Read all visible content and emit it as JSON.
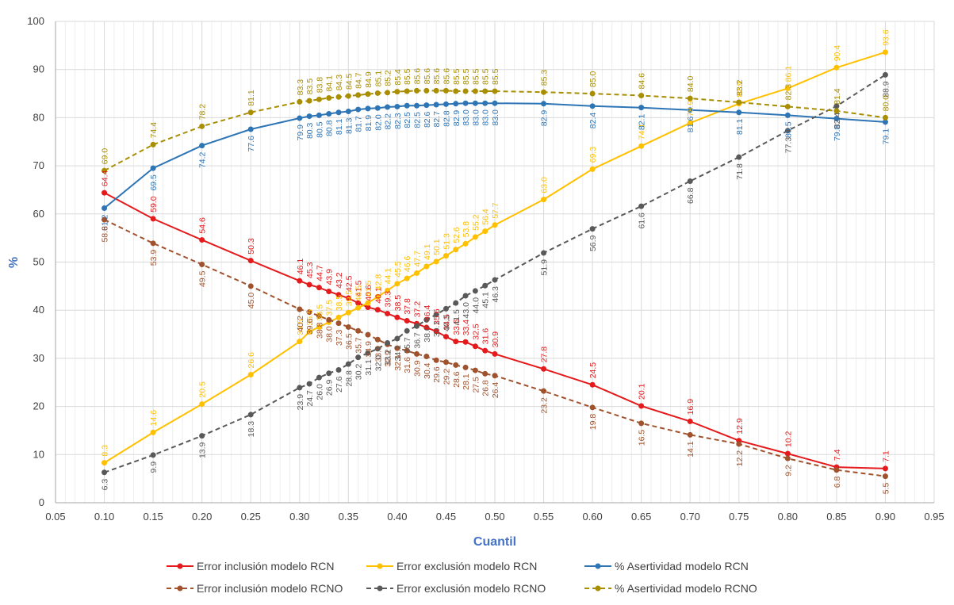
{
  "chart_data": {
    "type": "line",
    "title": "",
    "xlabel": "Cuantil",
    "ylabel": "%",
    "xlim": [
      0.05,
      0.95
    ],
    "ylim": [
      0,
      100
    ],
    "x_ticks": [
      "0.05",
      "0.10",
      "0.15",
      "0.20",
      "0.25",
      "0.30",
      "0.35",
      "0.40",
      "0.45",
      "0.50",
      "0.55",
      "0.60",
      "0.65",
      "0.70",
      "0.75",
      "0.80",
      "0.85",
      "0.90",
      "0.95"
    ],
    "y_ticks": [
      "0",
      "10",
      "20",
      "30",
      "40",
      "50",
      "60",
      "70",
      "80",
      "90",
      "100"
    ],
    "x": [
      0.1,
      0.15,
      0.2,
      0.25,
      0.3,
      0.31,
      0.32,
      0.33,
      0.34,
      0.35,
      0.36,
      0.37,
      0.38,
      0.39,
      0.4,
      0.41,
      0.42,
      0.43,
      0.44,
      0.45,
      0.46,
      0.47,
      0.48,
      0.49,
      0.5,
      0.55,
      0.6,
      0.65,
      0.7,
      0.75,
      0.8,
      0.85,
      0.9
    ],
    "series": [
      {
        "name": "Error inclusión modelo RCN",
        "color": "#E41A1C",
        "dash": false,
        "values": [
          64.4,
          59.0,
          54.6,
          50.3,
          46.1,
          45.3,
          44.7,
          43.9,
          43.2,
          42.5,
          41.5,
          40.6,
          40.1,
          39.3,
          38.5,
          37.8,
          37.2,
          36.4,
          35.6,
          34.5,
          33.5,
          33.4,
          32.5,
          31.6,
          30.9,
          27.8,
          24.5,
          20.1,
          16.9,
          12.9,
          10.2,
          7.4,
          7.1
        ]
      },
      {
        "name": "Error exclusión modelo RCN",
        "color": "#FFC000",
        "dash": false,
        "values": [
          8.3,
          14.6,
          20.5,
          26.6,
          33.5,
          35.5,
          36.5,
          37.5,
          38.5,
          39.5,
          40.5,
          41.5,
          42.8,
          44.1,
          45.5,
          46.6,
          47.7,
          49.1,
          50.1,
          51.3,
          52.6,
          53.8,
          55.2,
          56.4,
          57.7,
          63.0,
          69.3,
          74.1,
          78.9,
          82.9,
          86.1,
          90.4,
          93.6
        ]
      },
      {
        "name": "% Asertividad modelo RCN",
        "color": "#2E75B6",
        "dash": false,
        "values": [
          61.2,
          69.5,
          74.2,
          77.6,
          79.9,
          80.3,
          80.5,
          80.8,
          81.1,
          81.3,
          81.7,
          81.9,
          82.0,
          82.2,
          82.3,
          82.5,
          82.5,
          82.6,
          82.7,
          82.8,
          82.9,
          83.0,
          83.0,
          83.0,
          83.0,
          82.9,
          82.4,
          82.1,
          81.6,
          81.1,
          80.5,
          79.8,
          79.1
        ]
      },
      {
        "name": "Error inclusión modelo RCNO",
        "color": "#A0522D",
        "dash": true,
        "values": [
          58.8,
          53.9,
          49.5,
          45.0,
          40.2,
          39.6,
          38.8,
          38.0,
          37.3,
          36.5,
          35.7,
          34.9,
          33.9,
          32.9,
          32.1,
          31.6,
          30.9,
          30.4,
          29.6,
          29.2,
          28.6,
          28.1,
          27.5,
          26.8,
          26.4,
          23.2,
          19.8,
          16.5,
          14.1,
          12.2,
          9.2,
          6.8,
          5.5
        ]
      },
      {
        "name": "Error exclusión modelo RCNO",
        "color": "#595959",
        "dash": true,
        "values": [
          6.3,
          9.9,
          13.9,
          18.3,
          23.9,
          24.7,
          26.0,
          26.9,
          27.6,
          28.8,
          30.2,
          31.1,
          32.0,
          33.2,
          34.1,
          35.7,
          36.7,
          38.0,
          39.1,
          40.3,
          41.5,
          43.0,
          44.0,
          45.1,
          46.3,
          51.9,
          56.9,
          61.6,
          66.8,
          71.8,
          77.3,
          82.4,
          88.9
        ]
      },
      {
        "name": "% Asertividad modelo RCNO",
        "color": "#A88E00",
        "dash": true,
        "values": [
          69.0,
          74.4,
          78.2,
          81.1,
          83.3,
          83.5,
          83.8,
          84.1,
          84.3,
          84.5,
          84.7,
          84.9,
          85.1,
          85.2,
          85.4,
          85.5,
          85.6,
          85.6,
          85.6,
          85.6,
          85.5,
          85.5,
          85.5,
          85.5,
          85.5,
          85.3,
          85.0,
          84.6,
          84.0,
          83.2,
          82.3,
          81.4,
          80.0
        ]
      }
    ],
    "legend_position": "bottom",
    "grid": true
  }
}
